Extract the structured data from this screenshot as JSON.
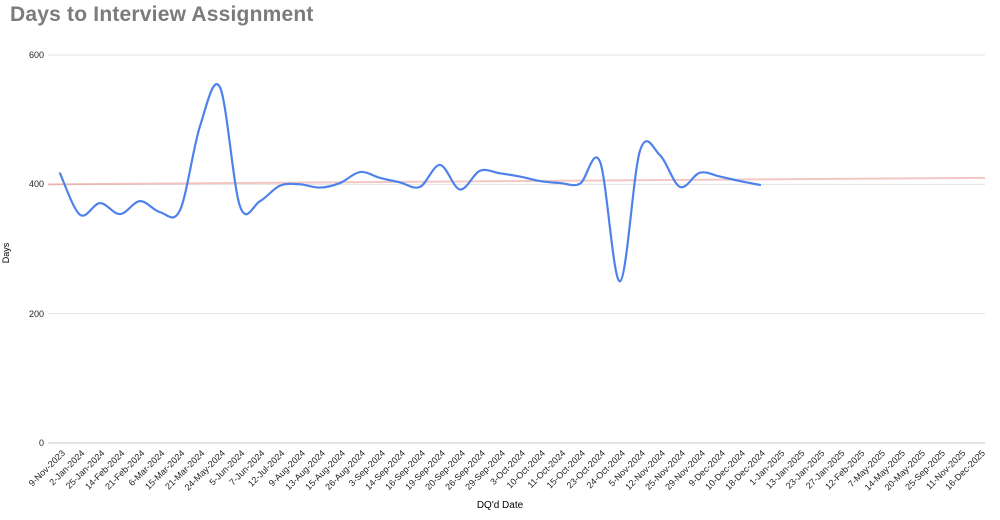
{
  "title": "Days to Interview Assignment",
  "colors": {
    "title_text": "#7b7b7b",
    "series_blue": "#4e82ea",
    "trend_red": "#db4437",
    "gridline": "#e3e3e3",
    "baseline": "#c9c9c9",
    "tick_text": "#222222"
  },
  "chart_data": {
    "type": "line",
    "title": "Days to Interview Assignment",
    "xlabel": "DQ'd Date",
    "ylabel": "Days",
    "ylim": [
      0,
      600
    ],
    "yticks": [
      0,
      200,
      400,
      600
    ],
    "grid": true,
    "smooth": true,
    "legend_position": "none",
    "categories": [
      "9-Nov-2023",
      "2-Jan-2024",
      "25-Jan-2024",
      "14-Feb-2024",
      "21-Feb-2024",
      "6-Mar-2024",
      "15-Mar-2024",
      "21-Mar-2024",
      "24-May-2024",
      "5-Jun-2024",
      "7-Jun-2024",
      "12-Jul-2024",
      "9-Aug-2024",
      "13-Aug-2024",
      "15-Aug-2024",
      "26-Aug-2024",
      "3-Sep-2024",
      "14-Sep-2024",
      "16-Sep-2024",
      "19-Sep-2024",
      "20-Sep-2024",
      "26-Sep-2024",
      "29-Sep-2024",
      "3-Oct-2024",
      "10-Oct-2024",
      "11-Oct-2024",
      "15-Oct-2024",
      "23-Oct-2024",
      "24-Oct-2024",
      "5-Nov-2024",
      "12-Nov-2024",
      "25-Nov-2024",
      "29-Nov-2024",
      "9-Dec-2024",
      "10-Dec-2024",
      "18-Dec-2024",
      "1-Jan-2025",
      "13-Jan-2025",
      "23-Jan-2025",
      "27-Jan-2025",
      "12-Feb-2025",
      "7-May-2025",
      "14-May-2025",
      "20-May-2025",
      "25-Sep-2025",
      "11-Nov-2025",
      "16-Dec-2025"
    ],
    "series": [
      {
        "name": "Days",
        "color": "#4e82ea",
        "values": [
          417,
          353,
          371,
          354,
          374,
          357,
          360,
          490,
          550,
          366,
          374,
          398,
          400,
          395,
          402,
          419,
          410,
          403,
          396,
          430,
          392,
          421,
          417,
          412,
          405,
          402,
          401,
          435,
          250,
          452,
          445,
          396,
          418,
          412,
          405,
          399,
          null,
          null,
          null,
          null,
          null,
          null,
          null,
          null,
          null,
          null,
          null
        ]
      },
      {
        "name": "Trendline",
        "type": "linear_trend",
        "color": "#db4437",
        "opacity": 0.3,
        "start_value": 400,
        "end_value": 410
      }
    ]
  }
}
